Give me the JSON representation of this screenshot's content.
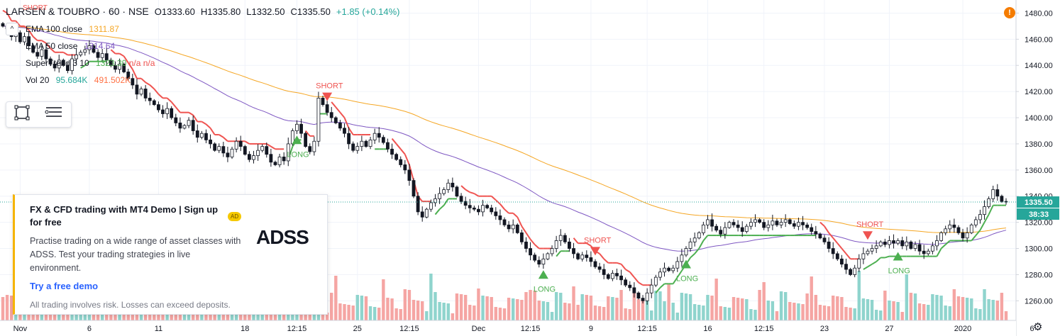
{
  "header": {
    "symbol": "LARSEN & TOUBRO · 60 · NSE",
    "open": "O1333.60",
    "high": "H1335.80",
    "low": "L1332.50",
    "close": "C1335.50",
    "change": "+1.85 (+0.14%)"
  },
  "legend": [
    {
      "label": "EMA 100 close",
      "value": "1311.87",
      "value2": "",
      "color": "#f5a623",
      "color2": ""
    },
    {
      "label": "EMA 50 close",
      "value": "1314.64",
      "value2": "",
      "color": "#7e57c2",
      "color2": ""
    },
    {
      "label": "SuperTrend 3 10",
      "value": "1323.30",
      "value2": "n/a  n/a",
      "color": "#4caf50",
      "color2": "#ef5350"
    },
    {
      "label": "Vol 20",
      "value": "95.684K",
      "value2": "491.502K",
      "color": "#26a69a",
      "color2": "#ff7043"
    }
  ],
  "top_marker": "SHORT",
  "price_label": "1335.50",
  "countdown": "38:33",
  "ad": {
    "title": "FX & CFD trading with MT4 Demo | Sign up for free",
    "badge": "AD",
    "body": "Practise trading on a wide range of asset classes with ADSS. Test your trading strategies in live environment.",
    "link": "Try a free demo",
    "disclaimer": "All trading involves risk. Losses can exceed deposits.",
    "logo": "ADSS"
  },
  "colors": {
    "up": "#26a69a",
    "down": "#ef5350",
    "ema100": "#f5a623",
    "ema50": "#7e57c2",
    "st_up": "#4caf50",
    "st_down": "#ef5350",
    "vol_up": "#8fd4cd",
    "vol_down": "#f5a5a3"
  },
  "icons": {
    "alert": "alert-icon",
    "settings": "gear-icon",
    "rectangle_tool": "rectangle-tool-icon",
    "objects_tool": "object-tree-icon"
  },
  "chart_data": {
    "type": "candlestick",
    "title": "",
    "ylim": [
      1245,
      1490
    ],
    "y_ticks": [
      1260,
      1280,
      1300,
      1320,
      1340,
      1360,
      1380,
      1400,
      1420,
      1440,
      1460,
      1480
    ],
    "x_ticks": [
      {
        "label": "Nov",
        "i": 4
      },
      {
        "label": "6",
        "i": 20
      },
      {
        "label": "11",
        "i": 36
      },
      {
        "label": "18",
        "i": 56
      },
      {
        "label": "12:15",
        "i": 68
      },
      {
        "label": "25",
        "i": 82
      },
      {
        "label": "12:15",
        "i": 94
      },
      {
        "label": "Dec",
        "i": 110
      },
      {
        "label": "12:15",
        "i": 122
      },
      {
        "label": "9",
        "i": 136
      },
      {
        "label": "12:15",
        "i": 149
      },
      {
        "label": "16",
        "i": 163
      },
      {
        "label": "12:15",
        "i": 176
      },
      {
        "label": "23",
        "i": 190
      },
      {
        "label": "27",
        "i": 205
      },
      {
        "label": "2020",
        "i": 222
      },
      {
        "label": "6",
        "i": 238
      }
    ],
    "closes": [
      1470,
      1468,
      1462,
      1465,
      1458,
      1462,
      1455,
      1450,
      1447,
      1452,
      1445,
      1441,
      1438,
      1444,
      1440,
      1436,
      1445,
      1448,
      1450,
      1452,
      1455,
      1450,
      1446,
      1449,
      1444,
      1440,
      1437,
      1441,
      1435,
      1430,
      1425,
      1418,
      1422,
      1415,
      1413,
      1410,
      1406,
      1403,
      1407,
      1400,
      1396,
      1392,
      1394,
      1398,
      1390,
      1385,
      1388,
      1383,
      1380,
      1375,
      1378,
      1373,
      1370,
      1376,
      1382,
      1378,
      1372,
      1368,
      1371,
      1375,
      1378,
      1372,
      1366,
      1364,
      1370,
      1367,
      1380,
      1390,
      1395,
      1388,
      1378,
      1374,
      1382,
      1415,
      1410,
      1404,
      1400,
      1396,
      1392,
      1388,
      1380,
      1375,
      1378,
      1382,
      1378,
      1383,
      1388,
      1385,
      1381,
      1376,
      1372,
      1368,
      1364,
      1360,
      1352,
      1340,
      1328,
      1324,
      1330,
      1335,
      1338,
      1342,
      1345,
      1350,
      1347,
      1340,
      1336,
      1333,
      1331,
      1330,
      1328,
      1333,
      1331,
      1328,
      1325,
      1322,
      1318,
      1315,
      1318,
      1312,
      1305,
      1300,
      1295,
      1291,
      1288,
      1292,
      1296,
      1300,
      1306,
      1310,
      1305,
      1300,
      1296,
      1292,
      1295,
      1293,
      1290,
      1286,
      1284,
      1280,
      1277,
      1281,
      1279,
      1276,
      1272,
      1270,
      1266,
      1262,
      1260,
      1266,
      1272,
      1278,
      1282,
      1285,
      1283,
      1285,
      1290,
      1295,
      1300,
      1305,
      1308,
      1312,
      1318,
      1322,
      1317,
      1314,
      1311,
      1316,
      1320,
      1318,
      1316,
      1313,
      1317,
      1320,
      1322,
      1320,
      1316,
      1318,
      1321,
      1318,
      1320,
      1322,
      1319,
      1317,
      1320,
      1318,
      1316,
      1313,
      1311,
      1308,
      1305,
      1300,
      1296,
      1292,
      1288,
      1284,
      1280,
      1285,
      1292,
      1296,
      1298,
      1300,
      1302,
      1305,
      1303,
      1306,
      1304,
      1306,
      1302,
      1305,
      1300,
      1303,
      1298,
      1296,
      1298,
      1302,
      1306,
      1312,
      1315,
      1318,
      1316,
      1312,
      1308,
      1312,
      1318,
      1322,
      1326,
      1332,
      1338,
      1345,
      1340,
      1336,
      1335.5
    ],
    "series": [
      {
        "name": "EMA 100 close",
        "last": 1311.87
      },
      {
        "name": "EMA 50 close",
        "last": 1314.64
      },
      {
        "name": "SuperTrend 3 10",
        "last": 1323.3
      },
      {
        "name": "Vol 20",
        "last": 95.684
      }
    ],
    "signals": [
      {
        "label": "LONG",
        "i": 68
      },
      {
        "label": "SHORT",
        "i": 75
      },
      {
        "label": "LONG",
        "i": 125
      },
      {
        "label": "SHORT",
        "i": 137
      },
      {
        "label": "LONG",
        "i": 158
      },
      {
        "label": "SHORT",
        "i": 200
      },
      {
        "label": "LONG",
        "i": 207
      }
    ]
  }
}
